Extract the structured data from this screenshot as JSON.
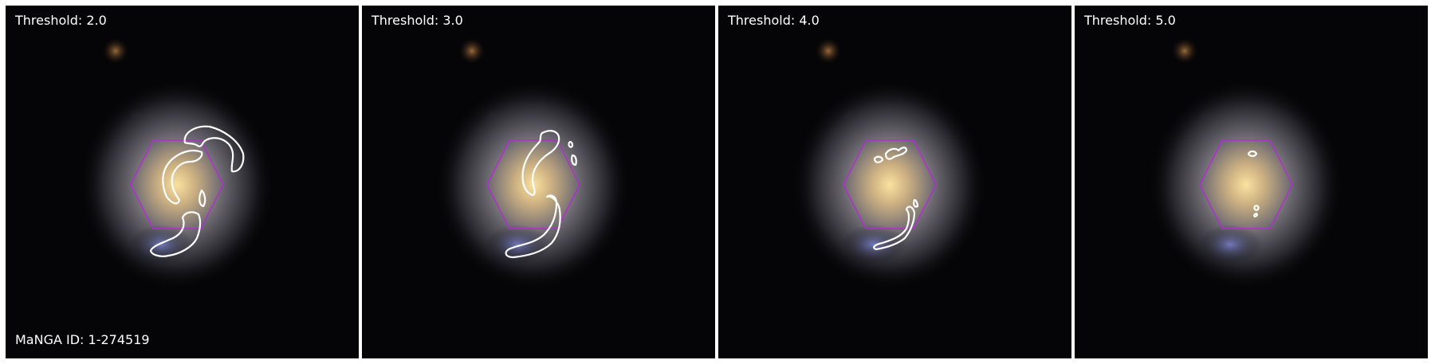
{
  "panels": [
    {
      "threshold_label": "Threshold: 2.0"
    },
    {
      "threshold_label": "Threshold: 3.0"
    },
    {
      "threshold_label": "Threshold: 4.0"
    },
    {
      "threshold_label": "Threshold: 5.0"
    }
  ],
  "galaxy_id_label": "MaNGA ID: 1-274519",
  "colors": {
    "background": "#000000",
    "ifu_hexagon": "#b32bd6",
    "contour": "#ffffff",
    "galaxy_core": "#f2d088",
    "galaxy_halo": "#8c8fa6",
    "blue_clump": "#7b86d8"
  },
  "icons": {
    "ifu_footprint": "hexagon",
    "contour": "spiral-arm-outline"
  }
}
